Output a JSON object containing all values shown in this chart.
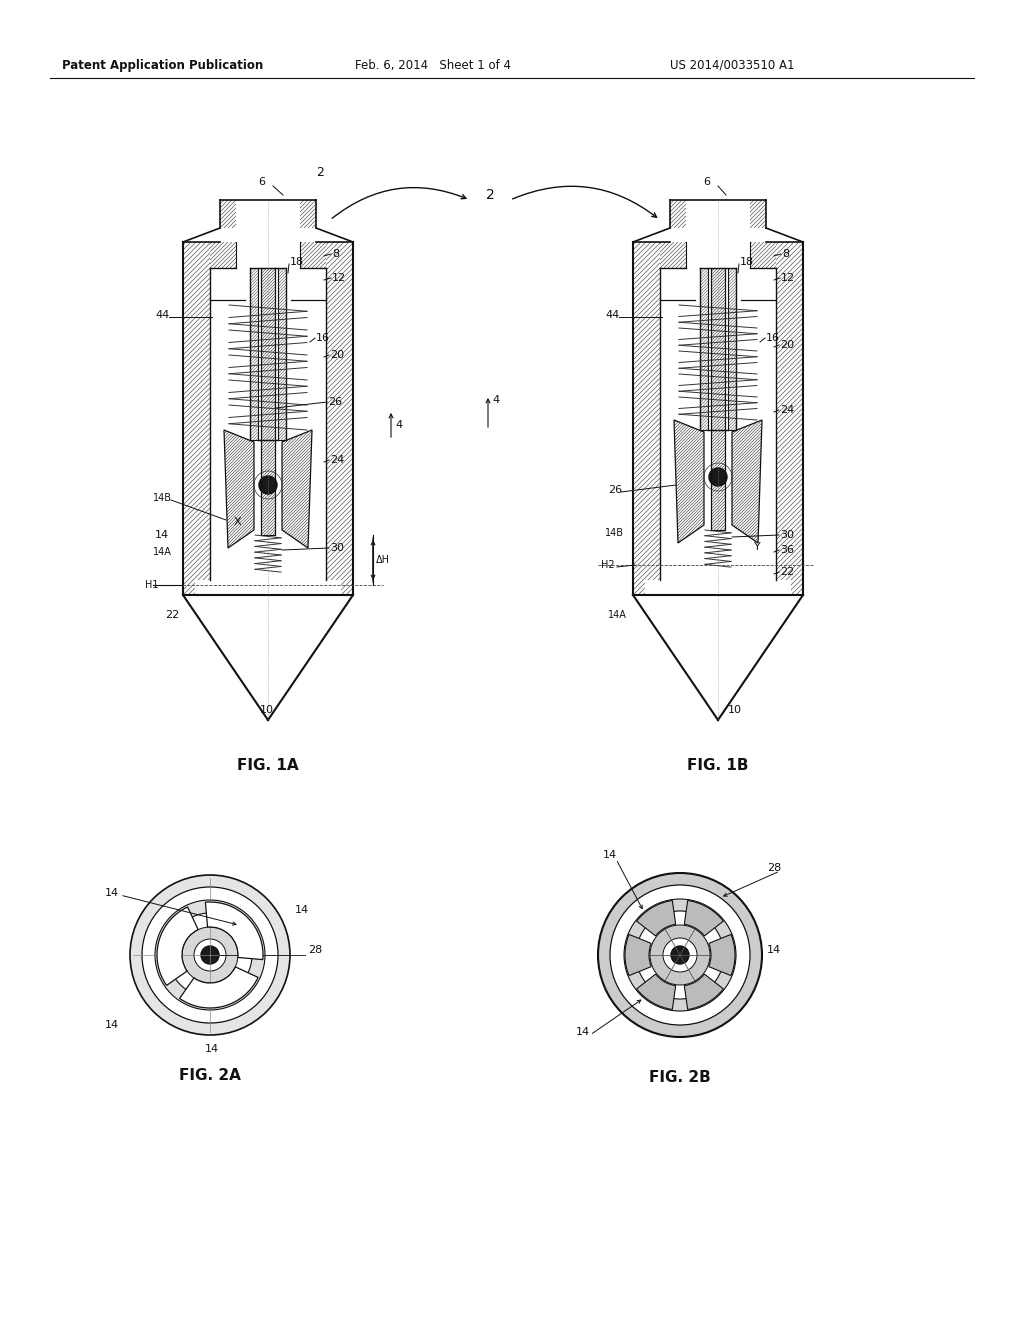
{
  "bg_color": "#ffffff",
  "line_color": "#111111",
  "hatch_color": "#666666",
  "header_left": "Patent Application Publication",
  "header_mid": "Feb. 6, 2014   Sheet 1 of 4",
  "header_right": "US 2014/0033510 A1",
  "fig1a_caption": "FIG. 1A",
  "fig1b_caption": "FIG. 1B",
  "fig2a_caption": "FIG. 2A",
  "fig2b_caption": "FIG. 2B"
}
